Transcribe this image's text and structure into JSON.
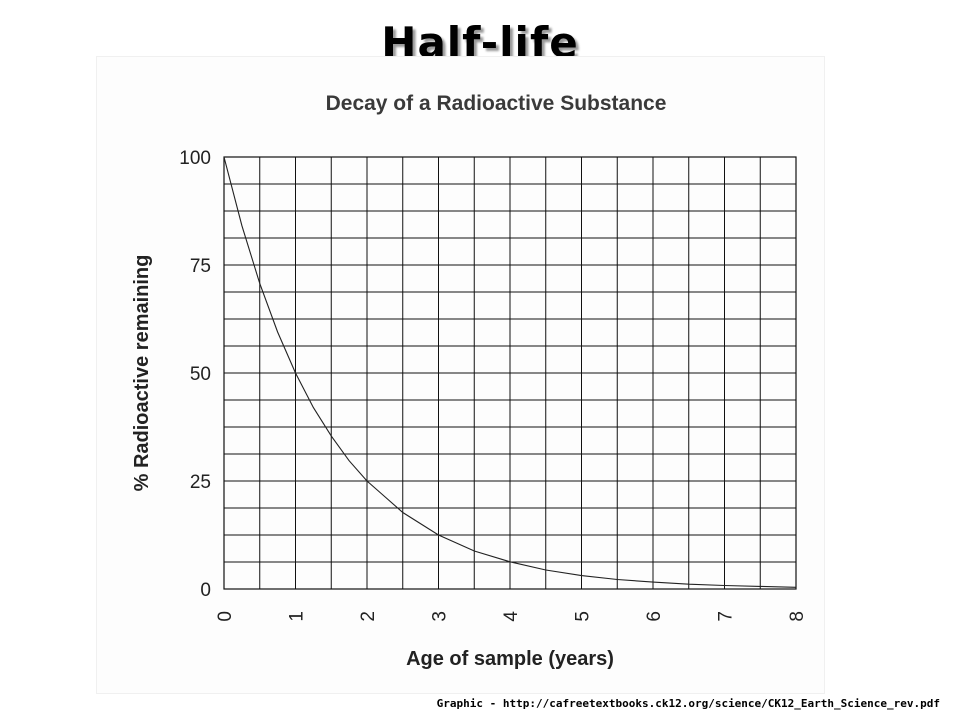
{
  "slide": {
    "title": "Half-life",
    "credit": "Graphic - http://cafreetextbooks.ck12.org/science/CK12_Earth_Science_rev.pdf"
  },
  "chart_data": {
    "type": "line",
    "title": "Decay of a Radioactive Substance",
    "xlabel": "Age of sample (years)",
    "ylabel": "% Radioactive remaining",
    "xlim": [
      0,
      8
    ],
    "ylim": [
      0,
      100
    ],
    "x_ticks": [
      0,
      1,
      2,
      3,
      4,
      5,
      6,
      7,
      8
    ],
    "y_ticks": [
      0,
      25,
      50,
      75,
      100
    ],
    "grid": true,
    "x_minor_step": 0.5,
    "y_minor_step": 6.25,
    "series": [
      {
        "x": [
          0,
          0.25,
          0.5,
          0.75,
          1,
          1.25,
          1.5,
          1.75,
          2,
          2.5,
          3,
          3.5,
          4,
          4.5,
          5,
          5.5,
          6,
          6.5,
          7,
          7.5,
          8
        ],
        "values": [
          100,
          84.1,
          70.7,
          59.5,
          50,
          42.0,
          35.4,
          29.7,
          25,
          17.7,
          12.5,
          8.8,
          6.3,
          4.4,
          3.1,
          2.2,
          1.6,
          1.1,
          0.8,
          0.6,
          0.4
        ]
      }
    ]
  }
}
